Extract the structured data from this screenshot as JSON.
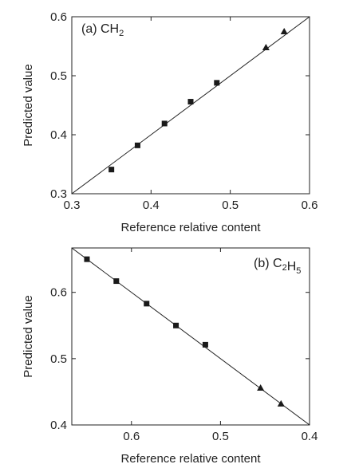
{
  "chart_data": [
    {
      "type": "scatter",
      "panel_label": "(a)",
      "formula": {
        "parts": [
          {
            "text": "CH",
            "sub": false
          },
          {
            "text": "2",
            "sub": true
          }
        ]
      },
      "xlabel": "Reference relative content",
      "ylabel": "Predicted  value",
      "xlim": [
        0.3,
        0.6
      ],
      "ylim": [
        0.3,
        0.6
      ],
      "x_reversed": false,
      "xticks": [
        0.3,
        0.4,
        0.5,
        0.6
      ],
      "yticks": [
        0.3,
        0.4,
        0.5,
        0.6
      ],
      "xtick_labels": [
        "0.3",
        "0.4",
        "0.5",
        "0.6"
      ],
      "ytick_labels": [
        "0.3",
        "0.4",
        "0.5",
        "0.6"
      ],
      "grid": false,
      "fit_line": {
        "x": [
          0.3,
          0.6
        ],
        "y": [
          0.3,
          0.6
        ]
      },
      "series": [
        {
          "marker": "square",
          "x": [
            0.35,
            0.383,
            0.417,
            0.45,
            0.483
          ],
          "y": [
            0.341,
            0.382,
            0.419,
            0.456,
            0.488
          ]
        },
        {
          "marker": "triangle",
          "x": [
            0.545,
            0.568
          ],
          "y": [
            0.548,
            0.575
          ]
        }
      ]
    },
    {
      "type": "scatter",
      "panel_label": "(b)",
      "formula": {
        "parts": [
          {
            "text": "C",
            "sub": false
          },
          {
            "text": "2",
            "sub": true
          },
          {
            "text": "H",
            "sub": false
          },
          {
            "text": "5",
            "sub": true
          }
        ]
      },
      "xlabel": "Reference relative content",
      "ylabel": "Predicted  value",
      "xlim": [
        0.667,
        0.4
      ],
      "ylim": [
        0.4,
        0.667
      ],
      "x_reversed": true,
      "xticks": [
        0.6,
        0.5,
        0.4
      ],
      "yticks": [
        0.4,
        0.5,
        0.6
      ],
      "xtick_labels": [
        "0.6",
        "0.5",
        "0.4"
      ],
      "ytick_labels": [
        "0.4",
        "0.5",
        "0.6"
      ],
      "grid": false,
      "fit_line": {
        "x": [
          0.667,
          0.4
        ],
        "y": [
          0.667,
          0.4
        ]
      },
      "series": [
        {
          "marker": "square",
          "x": [
            0.65,
            0.617,
            0.583,
            0.55,
            0.517
          ],
          "y": [
            0.65,
            0.617,
            0.583,
            0.55,
            0.521
          ]
        },
        {
          "marker": "triangle",
          "x": [
            0.455,
            0.432
          ],
          "y": [
            0.456,
            0.432
          ]
        }
      ]
    }
  ]
}
